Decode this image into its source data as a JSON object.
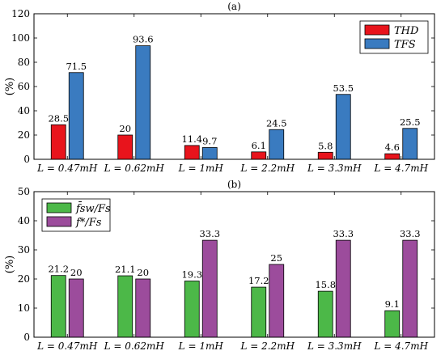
{
  "chart_data": [
    {
      "type": "bar",
      "title": "(a)",
      "ylabel": "(%)",
      "ylim": [
        0,
        120
      ],
      "yticks": [
        0,
        20,
        40,
        60,
        80,
        100,
        120
      ],
      "grid": false,
      "legend_position": "top-right",
      "categories": [
        "L = 0.47mH",
        "L = 0.62mH",
        "L = 1mH",
        "L = 2.2mH",
        "L = 3.3mH",
        "L = 4.7mH"
      ],
      "series": [
        {
          "name": "THD",
          "color": "#e8141c",
          "values": [
            28.5,
            20,
            11.4,
            6.1,
            5.8,
            4.6
          ],
          "labels": [
            "28.5",
            "20",
            "11.4",
            "6.1",
            "5.8",
            "4.6"
          ]
        },
        {
          "name": "TFS",
          "color": "#3a7bc0",
          "values": [
            71.5,
            93.6,
            9.7,
            24.5,
            53.5,
            25.5
          ],
          "labels": [
            "71.5",
            "93.6",
            "9.7",
            "24.5",
            "53.5",
            "25.5"
          ]
        }
      ]
    },
    {
      "type": "bar",
      "title": "(b)",
      "ylabel": "(%)",
      "ylim": [
        0,
        50
      ],
      "yticks": [
        0,
        10,
        20,
        30,
        40,
        50
      ],
      "grid": false,
      "legend_position": "top-left",
      "categories": [
        "L = 0.47mH",
        "L = 0.62mH",
        "L = 1mH",
        "L = 2.2mH",
        "L = 3.3mH",
        "L = 4.7mH"
      ],
      "series": [
        {
          "name": "f̄sw/Fs",
          "color": "#4cb848",
          "values": [
            21.2,
            21.1,
            19.3,
            17.2,
            15.8,
            9.1
          ],
          "labels": [
            "21.2",
            "21.1",
            "19.3",
            "17.2",
            "15.8",
            "9.1"
          ]
        },
        {
          "name": "f*/Fs",
          "color": "#9c4c9c",
          "values": [
            20,
            20,
            33.3,
            25,
            33.3,
            33.3
          ],
          "labels": [
            "20",
            "20",
            "33.3",
            "25",
            "33.3",
            "33.3"
          ]
        }
      ]
    }
  ]
}
